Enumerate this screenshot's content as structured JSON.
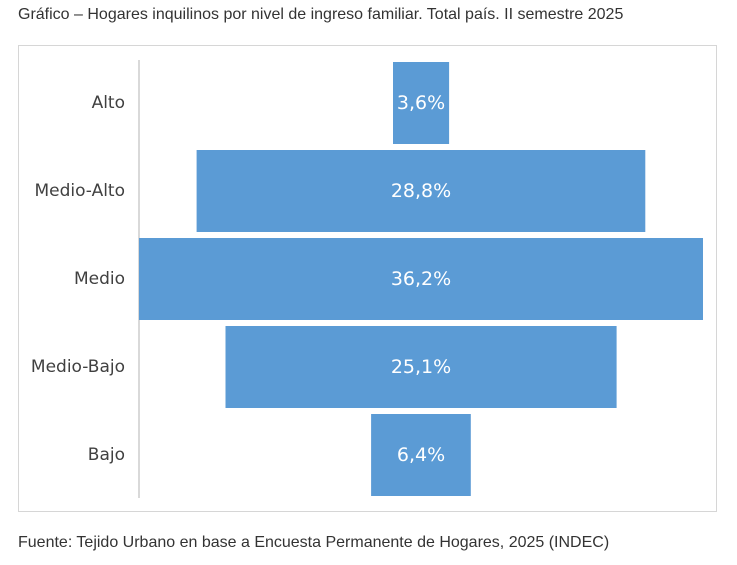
{
  "title": "Gráfico – Hogares inquilinos por nivel de ingreso familiar. Total país. II semestre 2025",
  "source": "Fuente: Tejido Urbano en base a Encuesta Permanente de Hogares, 2025 (INDEC)",
  "colors": {
    "bar": "#5b9bd5",
    "axis": "#d9d9d9"
  },
  "chart_data": {
    "type": "bar",
    "orientation": "horizontal-centered",
    "categories": [
      "Alto",
      "Medio-Alto",
      "Medio",
      "Medio-Bajo",
      "Bajo"
    ],
    "values": [
      3.6,
      28.8,
      36.2,
      25.1,
      6.4
    ],
    "value_labels": [
      "3,6%",
      "28,8%",
      "36,2%",
      "25,1%",
      "6,4%"
    ],
    "unit": "%",
    "title": "",
    "xlabel": "",
    "ylabel": "",
    "grid": false,
    "legend": "none"
  }
}
